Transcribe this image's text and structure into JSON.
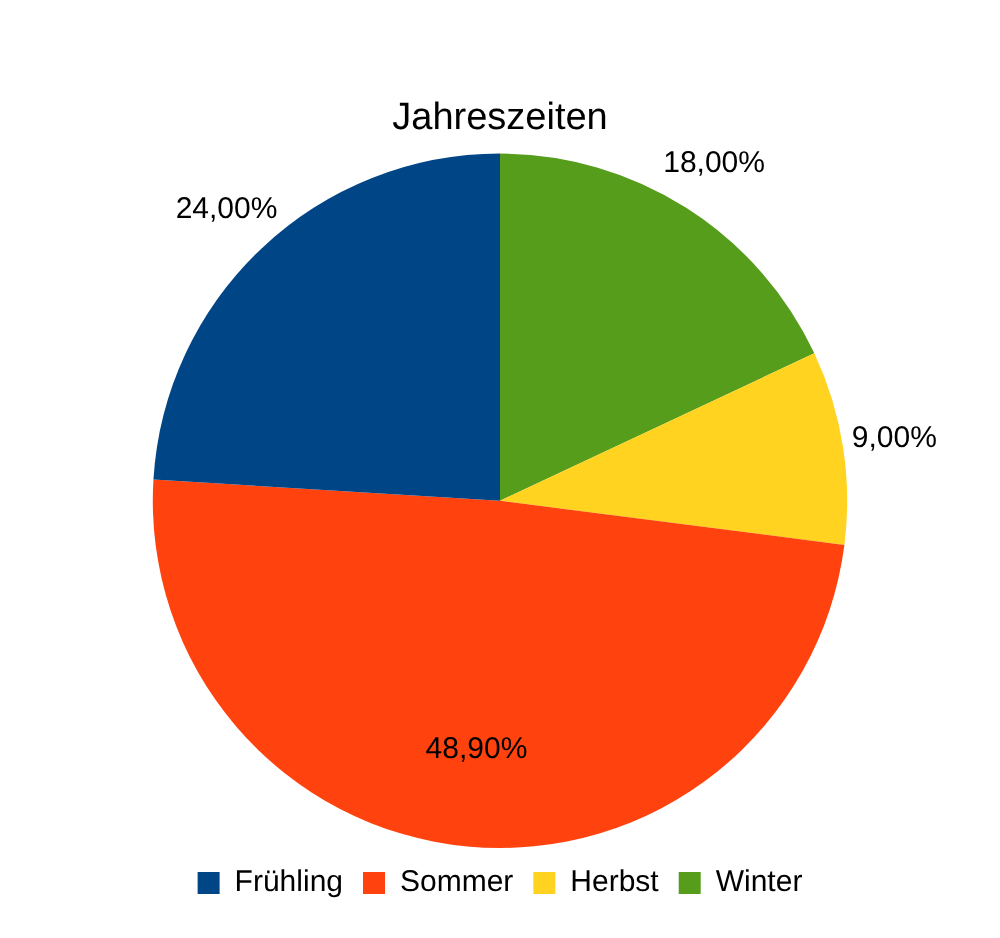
{
  "chart_data": {
    "type": "pie",
    "title": "Jahreszeiten",
    "categories": [
      "Frühling",
      "Sommer",
      "Herbst",
      "Winter"
    ],
    "values": [
      24,
      48.9,
      9,
      18
    ],
    "colors": [
      "#004586",
      "#ff420e",
      "#ffd320",
      "#579d1c"
    ],
    "value_labels": [
      "24,00%",
      "48,90%",
      "9,00%",
      "18,00%"
    ],
    "legend": "bottom"
  }
}
